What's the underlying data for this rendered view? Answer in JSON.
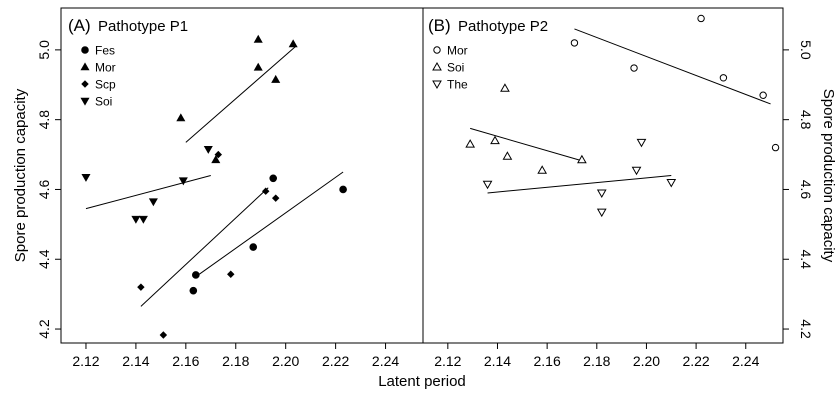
{
  "chart_data": {
    "type": "scatter",
    "xlabel": "Latent period",
    "ylabel": "Spore production capacity",
    "xlim": [
      2.11,
      2.255
    ],
    "ylim": [
      4.16,
      5.12
    ],
    "xticks": [
      2.12,
      2.14,
      2.16,
      2.18,
      2.2,
      2.22,
      2.24
    ],
    "xtick_labels": [
      "2.12",
      "2.14",
      "2.16",
      "2.18",
      "2.20",
      "2.22",
      "2.24"
    ],
    "yticks": [
      4.2,
      4.4,
      4.6,
      4.8,
      5.0
    ],
    "ytick_labels": [
      "4.2",
      "4.4",
      "4.6",
      "4.8",
      "5.0"
    ],
    "grid": false,
    "panels": [
      {
        "tag": "(A)",
        "title": "Pathotype P1",
        "y_axis_side": "left",
        "legend_position": "top-left",
        "series": [
          {
            "name": "Fes",
            "marker": "circle-filled",
            "points": [
              [
                2.163,
                4.31
              ],
              [
                2.164,
                4.355
              ],
              [
                2.187,
                4.435
              ],
              [
                2.195,
                4.632
              ],
              [
                2.223,
                4.6
              ]
            ],
            "fit": [
              [
                2.164,
                4.35
              ],
              [
                2.223,
                4.65
              ]
            ]
          },
          {
            "name": "Mor",
            "marker": "triangle-up-filled",
            "points": [
              [
                2.158,
                4.805
              ],
              [
                2.172,
                4.685
              ],
              [
                2.189,
                5.03
              ],
              [
                2.189,
                4.95
              ],
              [
                2.196,
                4.915
              ],
              [
                2.203,
                5.017
              ]
            ],
            "fit": [
              [
                2.16,
                4.735
              ],
              [
                2.204,
                5.01
              ]
            ]
          },
          {
            "name": "Scp",
            "marker": "diamond-filled",
            "points": [
              [
                2.142,
                4.32
              ],
              [
                2.151,
                4.183
              ],
              [
                2.173,
                4.7
              ],
              [
                2.178,
                4.357
              ],
              [
                2.192,
                4.595
              ],
              [
                2.196,
                4.575
              ]
            ],
            "fit": [
              [
                2.142,
                4.265
              ],
              [
                2.193,
                4.605
              ]
            ]
          },
          {
            "name": "Soi",
            "marker": "triangle-down-filled",
            "points": [
              [
                2.12,
                4.635
              ],
              [
                2.14,
                4.515
              ],
              [
                2.143,
                4.515
              ],
              [
                2.147,
                4.565
              ],
              [
                2.159,
                4.625
              ],
              [
                2.169,
                4.715
              ]
            ],
            "fit": [
              [
                2.12,
                4.545
              ],
              [
                2.17,
                4.64
              ]
            ]
          }
        ]
      },
      {
        "tag": "(B)",
        "title": "Pathotype P2",
        "y_axis_side": "right",
        "legend_position": "top-left",
        "series": [
          {
            "name": "Mor",
            "marker": "circle-open",
            "points": [
              [
                2.171,
                5.02
              ],
              [
                2.195,
                4.948
              ],
              [
                2.222,
                5.09
              ],
              [
                2.231,
                4.92
              ],
              [
                2.247,
                4.87
              ],
              [
                2.252,
                4.72
              ]
            ],
            "fit": [
              [
                2.171,
                5.06
              ],
              [
                2.25,
                4.845
              ]
            ]
          },
          {
            "name": "Soi",
            "marker": "triangle-up-open",
            "points": [
              [
                2.129,
                4.73
              ],
              [
                2.139,
                4.74
              ],
              [
                2.143,
                4.89
              ],
              [
                2.144,
                4.695
              ],
              [
                2.158,
                4.655
              ],
              [
                2.174,
                4.685
              ]
            ],
            "fit": [
              [
                2.129,
                4.775
              ],
              [
                2.175,
                4.68
              ]
            ]
          },
          {
            "name": "The",
            "marker": "triangle-down-open",
            "points": [
              [
                2.136,
                4.615
              ],
              [
                2.182,
                4.59
              ],
              [
                2.182,
                4.535
              ],
              [
                2.196,
                4.655
              ],
              [
                2.198,
                4.735
              ],
              [
                2.21,
                4.62
              ]
            ],
            "fit": [
              [
                2.136,
                4.59
              ],
              [
                2.21,
                4.64
              ]
            ]
          }
        ]
      }
    ]
  }
}
